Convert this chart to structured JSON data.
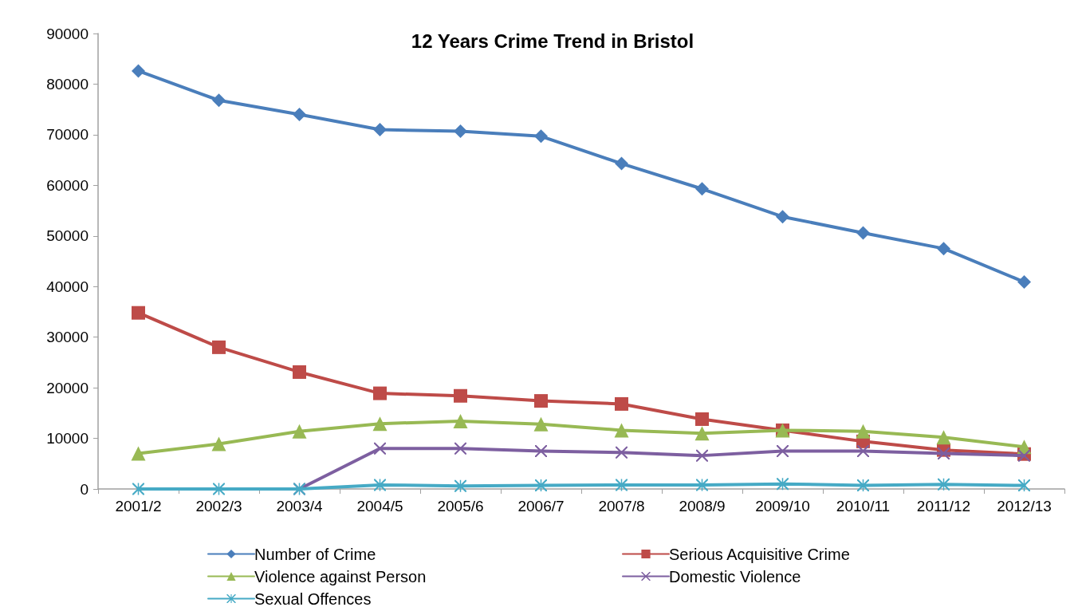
{
  "chart_data": {
    "type": "line",
    "title": "12 Years Crime Trend in Bristol",
    "categories": [
      "2001/2",
      "2002/3",
      "2003/4",
      "2004/5",
      "2005/6",
      "2006/7",
      "2007/8",
      "2008/9",
      "2009/10",
      "2010/11",
      "2011/12",
      "2012/13"
    ],
    "series": [
      {
        "name": "Number of Crime",
        "color": "#4a7ebb",
        "marker": "diamond",
        "values": [
          82600,
          76800,
          74000,
          71000,
          70700,
          69700,
          64300,
          59300,
          53800,
          50600,
          47500,
          40900
        ]
      },
      {
        "name": "Serious Acquisitive Crime",
        "color": "#be4b48",
        "marker": "square",
        "values": [
          34800,
          28000,
          23100,
          18900,
          18400,
          17400,
          16800,
          13800,
          11600,
          9400,
          7700,
          6900
        ]
      },
      {
        "name": "Violence against Person",
        "color": "#98b954",
        "marker": "triangle",
        "values": [
          7000,
          8900,
          11400,
          12900,
          13400,
          12800,
          11600,
          11000,
          11600,
          11400,
          10200,
          8300
        ]
      },
      {
        "name": "Domestic Violence",
        "color": "#7d5fa0",
        "marker": "cross",
        "values": [
          null,
          null,
          0,
          8000,
          8000,
          7500,
          7200,
          6600,
          7500,
          7500,
          7000,
          6600
        ]
      },
      {
        "name": "Sexual Offences",
        "color": "#46aac5",
        "marker": "star",
        "values": [
          0,
          0,
          0,
          800,
          600,
          700,
          800,
          800,
          1000,
          700,
          900,
          700
        ]
      }
    ],
    "ylim": [
      0,
      90000
    ],
    "yticks": [
      0,
      10000,
      20000,
      30000,
      40000,
      50000,
      60000,
      70000,
      80000,
      90000
    ],
    "grid": false,
    "legend": "bottom",
    "line_style": "solid"
  }
}
